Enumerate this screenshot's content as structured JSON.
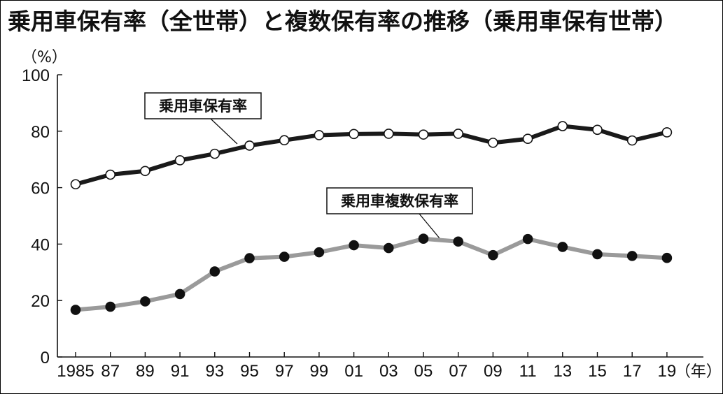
{
  "chart_data": {
    "type": "line",
    "title": "乗用車保有率（全世帯）と複数保有率の推移（乗用車保有世帯）",
    "y_unit": "（%）",
    "x_unit": "（年）",
    "x_tick_labels": [
      "1985",
      "87",
      "89",
      "91",
      "93",
      "95",
      "97",
      "99",
      "01",
      "03",
      "05",
      "07",
      "09",
      "11",
      "13",
      "15",
      "17",
      "19"
    ],
    "x": [
      1985,
      1987,
      1989,
      1991,
      1993,
      1995,
      1997,
      1999,
      2001,
      2003,
      2005,
      2007,
      2009,
      2011,
      2013,
      2015,
      2017,
      2019
    ],
    "ylim": [
      0,
      100
    ],
    "y_ticks": [
      0,
      20,
      40,
      60,
      80,
      100
    ],
    "grid": false,
    "series": [
      {
        "name": "乗用車保有率",
        "color": "#1a1a1a",
        "marker": "open-circle",
        "values": [
          61.2,
          64.6,
          65.9,
          69.7,
          72.0,
          74.9,
          76.8,
          78.6,
          79.0,
          79.1,
          78.8,
          79.1,
          75.9,
          77.3,
          81.8,
          80.5,
          76.7,
          79.6
        ]
      },
      {
        "name": "乗用車複数保有率",
        "color": "#9a9a9a",
        "marker": "filled-circle",
        "values": [
          16.7,
          17.8,
          19.7,
          22.3,
          30.3,
          35.0,
          35.5,
          37.1,
          39.6,
          38.6,
          41.9,
          40.9,
          36.1,
          41.8,
          39.0,
          36.4,
          35.8,
          35.1
        ]
      }
    ]
  }
}
